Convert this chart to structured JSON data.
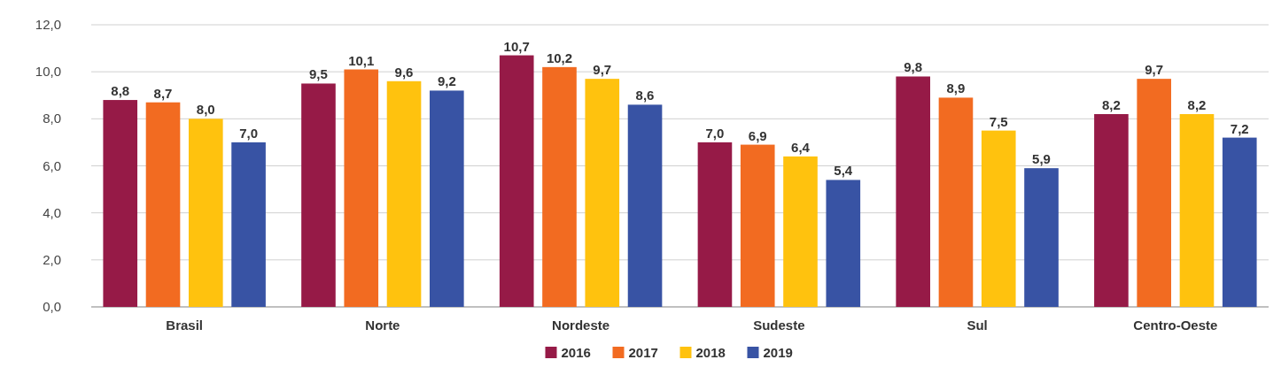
{
  "chart_data": {
    "type": "bar",
    "categories": [
      "Brasil",
      "Norte",
      "Nordeste",
      "Sudeste",
      "Sul",
      "Centro-Oeste"
    ],
    "series": [
      {
        "name": "2016",
        "color": "#961a47",
        "values": [
          8.8,
          9.5,
          10.7,
          7.0,
          9.8,
          8.2
        ],
        "value_labels": [
          "8,8",
          "9,5",
          "10,7",
          "7,0",
          "9,8",
          "8,2"
        ]
      },
      {
        "name": "2017",
        "color": "#f26b21",
        "values": [
          8.7,
          10.1,
          10.2,
          6.9,
          8.9,
          9.7
        ],
        "value_labels": [
          "8,7",
          "10,1",
          "10,2",
          "6,9",
          "8,9",
          "9,7"
        ]
      },
      {
        "name": "2018",
        "color": "#ffc20e",
        "values": [
          8.0,
          9.6,
          9.7,
          6.4,
          7.5,
          8.2
        ],
        "value_labels": [
          "8,0",
          "9,6",
          "9,7",
          "6,4",
          "7,5",
          "8,2"
        ]
      },
      {
        "name": "2019",
        "color": "#3853a4",
        "values": [
          7.0,
          9.2,
          8.6,
          5.4,
          5.9,
          7.2
        ],
        "value_labels": [
          "7,0",
          "9,2",
          "8,6",
          "5,4",
          "5,9",
          "7,2"
        ]
      }
    ],
    "ylim": [
      0,
      12
    ],
    "yticks": [
      {
        "value": 0,
        "label": "0,0"
      },
      {
        "value": 2,
        "label": "2,0"
      },
      {
        "value": 4,
        "label": "4,0"
      },
      {
        "value": 6,
        "label": "6,0"
      },
      {
        "value": 8,
        "label": "8,0"
      },
      {
        "value": 10,
        "label": "10,0"
      },
      {
        "value": 12,
        "label": "12,0"
      }
    ],
    "grid": "y",
    "legend": "bottom"
  }
}
